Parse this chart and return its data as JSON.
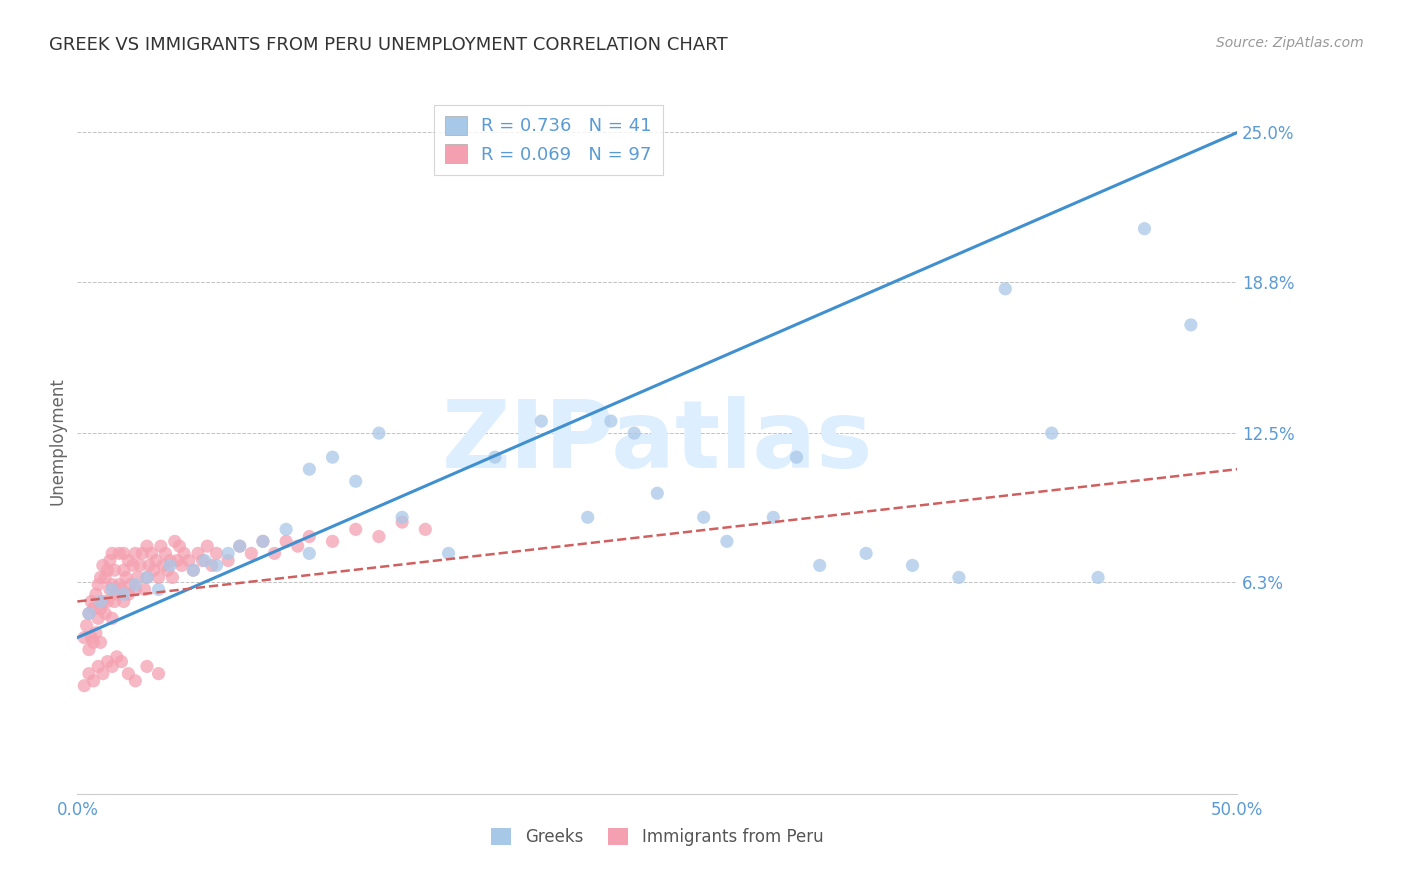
{
  "title": "GREEK VS IMMIGRANTS FROM PERU UNEMPLOYMENT CORRELATION CHART",
  "source": "Source: ZipAtlas.com",
  "ylabel": "Unemployment",
  "yticks": [
    0.0,
    0.063,
    0.125,
    0.188,
    0.25
  ],
  "ytick_labels": [
    "",
    "6.3%",
    "12.5%",
    "18.8%",
    "25.0%"
  ],
  "xmin": 0.0,
  "xmax": 0.5,
  "ymin": -0.025,
  "ymax": 0.268,
  "greek_R": 0.736,
  "greek_N": 41,
  "peru_R": 0.069,
  "peru_N": 97,
  "blue_scatter_color": "#a8c8e8",
  "pink_scatter_color": "#f4a0b0",
  "blue_line_color": "#4090d0",
  "pink_line_color": "#d06060",
  "title_color": "#333333",
  "axis_label_color": "#5b9bd5",
  "right_tick_color": "#5b9bd5",
  "watermark_color": "#ddeeff",
  "grid_color": "#bbbbbb",
  "background_color": "#ffffff",
  "greek_x": [
    0.005,
    0.01,
    0.015,
    0.02,
    0.025,
    0.03,
    0.035,
    0.04,
    0.05,
    0.055,
    0.06,
    0.065,
    0.07,
    0.08,
    0.09,
    0.1,
    0.1,
    0.11,
    0.12,
    0.13,
    0.14,
    0.16,
    0.18,
    0.2,
    0.22,
    0.23,
    0.24,
    0.25,
    0.27,
    0.28,
    0.3,
    0.31,
    0.32,
    0.34,
    0.36,
    0.38,
    0.4,
    0.42,
    0.44,
    0.46,
    0.48
  ],
  "greek_y": [
    0.05,
    0.055,
    0.06,
    0.058,
    0.062,
    0.065,
    0.06,
    0.07,
    0.068,
    0.072,
    0.07,
    0.075,
    0.078,
    0.08,
    0.085,
    0.11,
    0.075,
    0.115,
    0.105,
    0.125,
    0.09,
    0.075,
    0.115,
    0.13,
    0.09,
    0.13,
    0.125,
    0.1,
    0.09,
    0.08,
    0.09,
    0.115,
    0.07,
    0.075,
    0.07,
    0.065,
    0.185,
    0.125,
    0.065,
    0.21,
    0.17
  ],
  "peru_x": [
    0.003,
    0.004,
    0.005,
    0.005,
    0.006,
    0.006,
    0.007,
    0.007,
    0.008,
    0.008,
    0.009,
    0.009,
    0.01,
    0.01,
    0.01,
    0.011,
    0.011,
    0.012,
    0.012,
    0.013,
    0.013,
    0.014,
    0.014,
    0.015,
    0.015,
    0.015,
    0.016,
    0.016,
    0.017,
    0.018,
    0.018,
    0.019,
    0.02,
    0.02,
    0.02,
    0.021,
    0.022,
    0.022,
    0.023,
    0.024,
    0.025,
    0.025,
    0.026,
    0.027,
    0.028,
    0.029,
    0.03,
    0.03,
    0.031,
    0.032,
    0.033,
    0.034,
    0.035,
    0.036,
    0.037,
    0.038,
    0.039,
    0.04,
    0.041,
    0.042,
    0.043,
    0.044,
    0.045,
    0.046,
    0.048,
    0.05,
    0.052,
    0.054,
    0.056,
    0.058,
    0.06,
    0.065,
    0.07,
    0.075,
    0.08,
    0.085,
    0.09,
    0.095,
    0.1,
    0.11,
    0.12,
    0.13,
    0.14,
    0.15,
    0.003,
    0.005,
    0.007,
    0.009,
    0.011,
    0.013,
    0.015,
    0.017,
    0.019,
    0.022,
    0.025,
    0.03,
    0.035
  ],
  "peru_y": [
    0.04,
    0.045,
    0.035,
    0.05,
    0.04,
    0.055,
    0.038,
    0.052,
    0.042,
    0.058,
    0.048,
    0.062,
    0.038,
    0.052,
    0.065,
    0.055,
    0.07,
    0.05,
    0.065,
    0.055,
    0.068,
    0.06,
    0.072,
    0.048,
    0.062,
    0.075,
    0.055,
    0.068,
    0.058,
    0.062,
    0.075,
    0.06,
    0.055,
    0.068,
    0.075,
    0.065,
    0.058,
    0.072,
    0.062,
    0.07,
    0.06,
    0.075,
    0.065,
    0.07,
    0.075,
    0.06,
    0.065,
    0.078,
    0.07,
    0.075,
    0.068,
    0.072,
    0.065,
    0.078,
    0.07,
    0.075,
    0.068,
    0.072,
    0.065,
    0.08,
    0.072,
    0.078,
    0.07,
    0.075,
    0.072,
    0.068,
    0.075,
    0.072,
    0.078,
    0.07,
    0.075,
    0.072,
    0.078,
    0.075,
    0.08,
    0.075,
    0.08,
    0.078,
    0.082,
    0.08,
    0.085,
    0.082,
    0.088,
    0.085,
    0.02,
    0.025,
    0.022,
    0.028,
    0.025,
    0.03,
    0.028,
    0.032,
    0.03,
    0.025,
    0.022,
    0.028,
    0.025
  ],
  "blue_line_x0": 0.0,
  "blue_line_y0": 0.04,
  "blue_line_x1": 0.5,
  "blue_line_y1": 0.25,
  "pink_line_x0": 0.0,
  "pink_line_y0": 0.055,
  "pink_line_x1": 0.5,
  "pink_line_y1": 0.11
}
